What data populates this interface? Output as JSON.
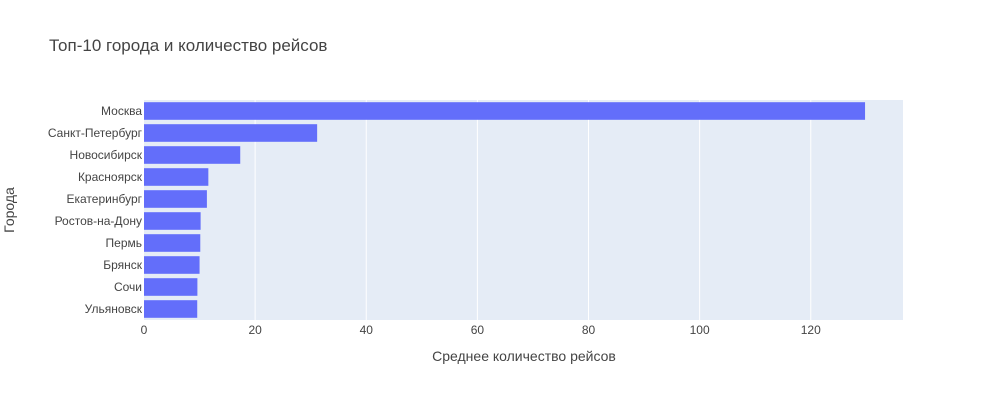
{
  "chart_data": {
    "type": "bar",
    "orientation": "horizontal",
    "title": "Топ-10 города и количество рейсов",
    "xlabel": "Среднее количество рейсов",
    "ylabel": "Города",
    "categories": [
      "Москва",
      "Санкт-Петербург",
      "Новосибирск",
      "Красноярск",
      "Екатеринбург",
      "Ростов-на-Дону",
      "Пермь",
      "Брянск",
      "Сочи",
      "Ульяновск"
    ],
    "values": [
      129.77,
      31.16,
      17.32,
      11.58,
      11.32,
      10.19,
      10.13,
      10.0,
      9.61,
      9.58
    ],
    "xlim": [
      0,
      136.6
    ],
    "xticks": [
      0,
      20,
      40,
      60,
      80,
      100,
      120
    ],
    "grid": true,
    "bar_color": "#636efa",
    "plot_bg_color": "#e5ecf6"
  }
}
